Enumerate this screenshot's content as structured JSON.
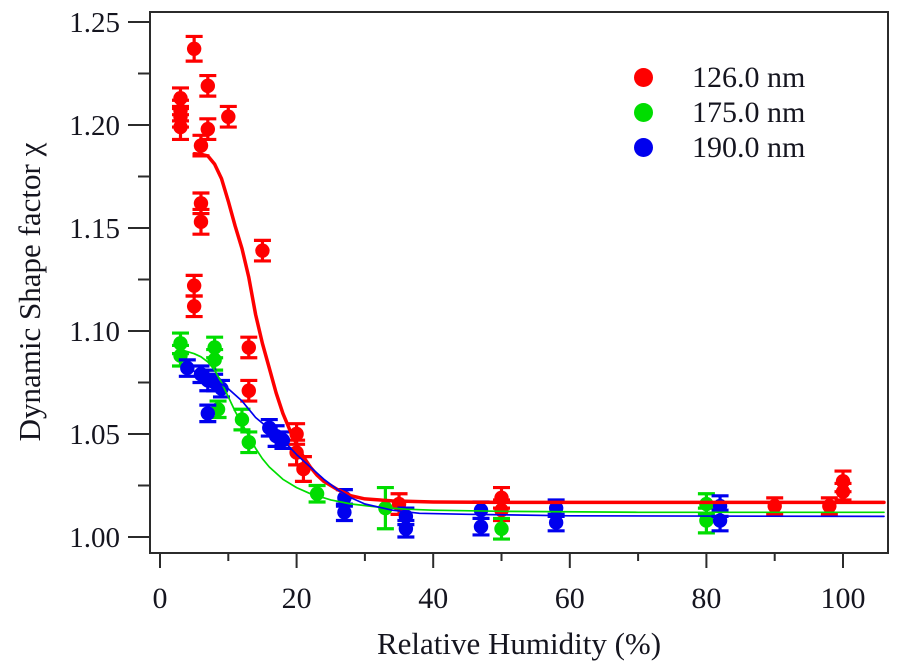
{
  "window": {
    "background": "#ffffff",
    "text_color": "#15151f",
    "frame_color": "#2b2b2b"
  },
  "chart_data": {
    "type": "scatter",
    "title": "",
    "xlabel": "Relative Humidity (%)",
    "ylabel": "Dynamic Shape factor χ",
    "xlim": [
      -1.5,
      106.5
    ],
    "ylim": [
      0.992,
      1.255
    ],
    "grid": false,
    "legend_position": "top-right",
    "x_major_ticks": [
      0,
      20,
      40,
      60,
      80,
      100
    ],
    "x_minor_ticks": [
      10,
      30,
      50,
      70,
      90
    ],
    "y_major_ticks": [
      1.0,
      1.05,
      1.1,
      1.15,
      1.2,
      1.25
    ],
    "y_major_tick_labels": [
      "1.00",
      "1.05",
      "1.10",
      "1.15",
      "1.20",
      "1.25"
    ],
    "y_minor_ticks": [
      1.025,
      1.075,
      1.125,
      1.175,
      1.225
    ],
    "series": [
      {
        "name": "126.0 nm",
        "color": "#fe0000",
        "marker": "circle",
        "points": [
          [
            5,
            1.237,
            0.006
          ],
          [
            7,
            1.219,
            0.005
          ],
          [
            3,
            1.213,
            0.005
          ],
          [
            3,
            1.207,
            0.005
          ],
          [
            3,
            1.204,
            0.005
          ],
          [
            3,
            1.199,
            0.006
          ],
          [
            10,
            1.204,
            0.005
          ],
          [
            7,
            1.198,
            0.005
          ],
          [
            6,
            1.19,
            0.005
          ],
          [
            6,
            1.162,
            0.005
          ],
          [
            6,
            1.153,
            0.006
          ],
          [
            15,
            1.139,
            0.005
          ],
          [
            5,
            1.122,
            0.005
          ],
          [
            5,
            1.112,
            0.005
          ],
          [
            13,
            1.092,
            0.005
          ],
          [
            13,
            1.071,
            0.005
          ],
          [
            20,
            1.05,
            0.005
          ],
          [
            20,
            1.041,
            0.006
          ],
          [
            21,
            1.033,
            0.006
          ],
          [
            35,
            1.016,
            0.005
          ],
          [
            50,
            1.019,
            0.005
          ],
          [
            50,
            1.013,
            0.005
          ],
          [
            90,
            1.015,
            0.004
          ],
          [
            98,
            1.015,
            0.004
          ],
          [
            100,
            1.027,
            0.005
          ],
          [
            100,
            1.022,
            0.004
          ]
        ],
        "fit_curve": [
          [
            5,
            1.186
          ],
          [
            6,
            1.1858
          ],
          [
            7,
            1.185
          ],
          [
            8,
            1.181
          ],
          [
            9,
            1.174
          ],
          [
            10,
            1.163
          ],
          [
            11,
            1.151
          ],
          [
            12,
            1.14
          ],
          [
            13,
            1.126
          ],
          [
            14,
            1.108
          ],
          [
            15,
            1.094
          ],
          [
            16,
            1.082
          ],
          [
            17,
            1.07
          ],
          [
            18,
            1.06
          ],
          [
            19,
            1.052
          ],
          [
            20,
            1.045
          ],
          [
            21,
            1.039
          ],
          [
            22,
            1.034
          ],
          [
            23,
            1.03
          ],
          [
            24,
            1.027
          ],
          [
            26,
            1.023
          ],
          [
            28,
            1.02
          ],
          [
            30,
            1.0185
          ],
          [
            34,
            1.0175
          ],
          [
            40,
            1.017
          ],
          [
            50,
            1.0168
          ],
          [
            70,
            1.0168
          ],
          [
            106,
            1.0168
          ]
        ]
      },
      {
        "name": "175.0 nm",
        "color": "#00dd00",
        "marker": "circle",
        "points": [
          [
            3,
            1.094,
            0.005
          ],
          [
            3,
            1.088,
            0.005
          ],
          [
            8,
            1.092,
            0.005
          ],
          [
            8,
            1.086,
            0.005
          ],
          [
            8.5,
            1.062,
            0.004
          ],
          [
            12,
            1.057,
            0.005
          ],
          [
            13,
            1.046,
            0.005
          ],
          [
            23,
            1.021,
            0.004
          ],
          [
            33,
            1.014,
            0.01
          ],
          [
            50,
            1.004,
            0.005
          ],
          [
            80,
            1.016,
            0.005
          ],
          [
            80,
            1.008,
            0.006
          ]
        ],
        "fit_curve": [
          [
            3.5,
            1.0905
          ],
          [
            5,
            1.089
          ],
          [
            6,
            1.0875
          ],
          [
            7,
            1.085
          ],
          [
            8,
            1.081
          ],
          [
            9,
            1.075
          ],
          [
            10,
            1.068
          ],
          [
            11,
            1.061
          ],
          [
            12,
            1.055
          ],
          [
            13,
            1.049
          ],
          [
            14,
            1.043
          ],
          [
            15,
            1.038
          ],
          [
            16,
            1.034
          ],
          [
            18,
            1.028
          ],
          [
            20,
            1.024
          ],
          [
            22,
            1.021
          ],
          [
            25,
            1.018
          ],
          [
            28,
            1.016
          ],
          [
            32,
            1.0145
          ],
          [
            36,
            1.0135
          ],
          [
            40,
            1.013
          ],
          [
            50,
            1.0125
          ],
          [
            70,
            1.012
          ],
          [
            106,
            1.012
          ]
        ]
      },
      {
        "name": "190.0 nm",
        "color": "#0000ee",
        "marker": "circle",
        "points": [
          [
            4,
            1.082,
            0.004
          ],
          [
            6,
            1.079,
            0.004
          ],
          [
            7,
            1.076,
            0.005
          ],
          [
            8,
            1.075,
            0.004
          ],
          [
            9,
            1.072,
            0.004
          ],
          [
            7,
            1.06,
            0.004
          ],
          [
            16,
            1.053,
            0.004
          ],
          [
            17,
            1.049,
            0.005
          ],
          [
            18,
            1.047,
            0.004
          ],
          [
            27,
            1.019,
            0.004
          ],
          [
            27,
            1.012,
            0.004
          ],
          [
            36,
            1.01,
            0.004
          ],
          [
            36,
            1.004,
            0.004
          ],
          [
            47,
            1.013,
            0.004
          ],
          [
            47,
            1.005,
            0.004
          ],
          [
            58,
            1.014,
            0.004
          ],
          [
            58,
            1.007,
            0.004
          ],
          [
            82,
            1.015,
            0.005
          ],
          [
            82,
            1.008,
            0.005
          ]
        ],
        "fit_curve": [
          [
            4,
            1.0815
          ],
          [
            6,
            1.0795
          ],
          [
            8,
            1.0765
          ],
          [
            10,
            1.072
          ],
          [
            12,
            1.066
          ],
          [
            14,
            1.058
          ],
          [
            16,
            1.0525
          ],
          [
            18,
            1.047
          ],
          [
            20,
            1.04
          ],
          [
            22,
            1.034
          ],
          [
            24,
            1.028
          ],
          [
            26,
            1.023
          ],
          [
            28,
            1.019
          ],
          [
            30,
            1.016
          ],
          [
            34,
            1.013
          ],
          [
            38,
            1.0115
          ],
          [
            45,
            1.011
          ],
          [
            60,
            1.0103
          ],
          [
            106,
            1.01
          ]
        ]
      }
    ]
  }
}
